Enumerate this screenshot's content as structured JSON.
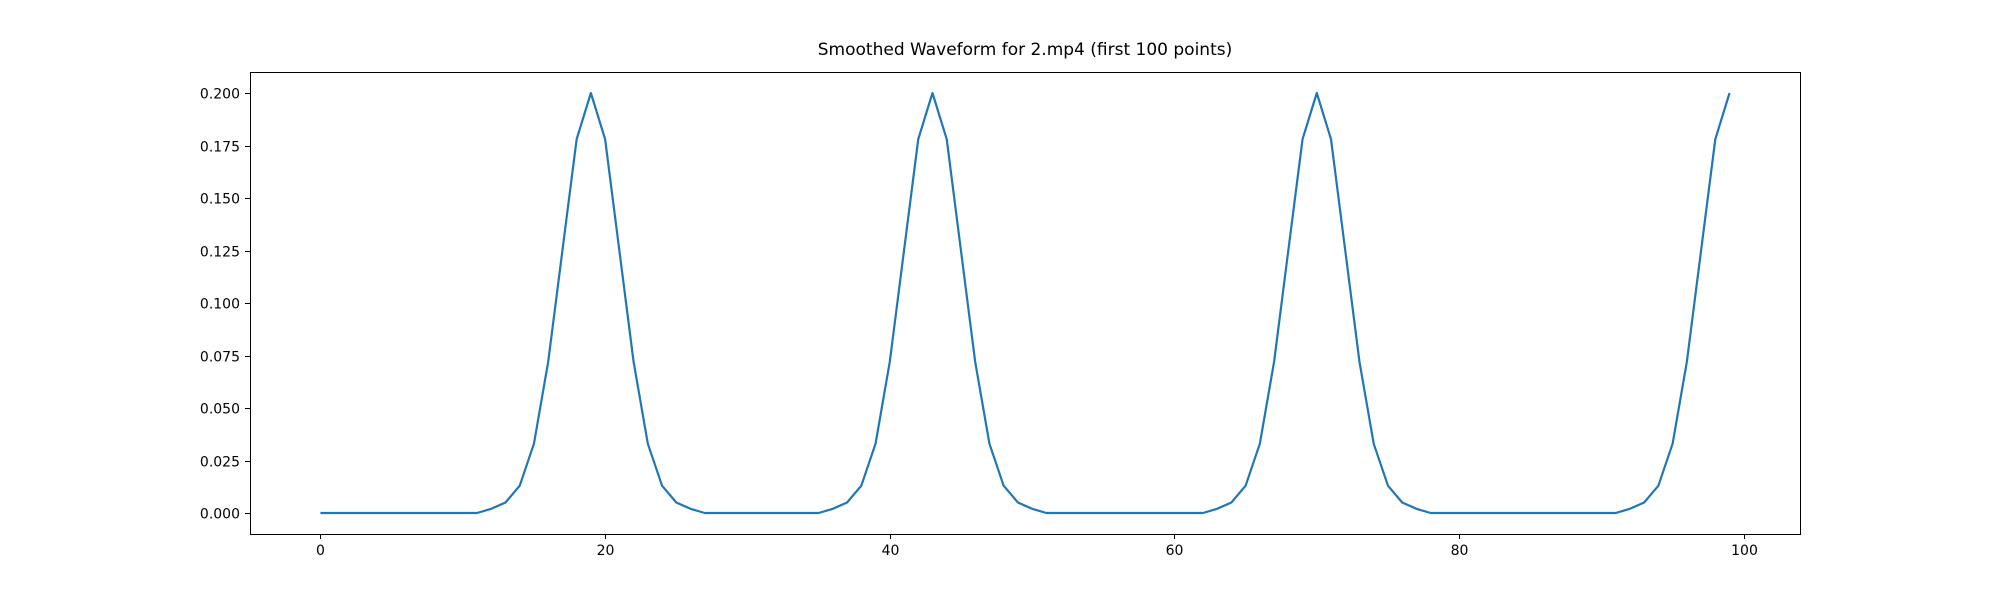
{
  "figure": {
    "background_color": "#ffffff",
    "axis_color": "#000000"
  },
  "chart_data": {
    "type": "line",
    "title": "Smoothed Waveform for 2.mp4 (first 100 points)",
    "xlabel": "",
    "ylabel": "",
    "legend": null,
    "grid": false,
    "line_color": "#1f77b4",
    "xlim": [
      -4.95,
      103.95
    ],
    "ylim": [
      -0.01,
      0.21
    ],
    "xticks": [
      0,
      20,
      40,
      60,
      80,
      100
    ],
    "xtick_labels": [
      "0",
      "20",
      "40",
      "60",
      "80",
      "100"
    ],
    "yticks": [
      0.0,
      0.025,
      0.05,
      0.075,
      0.1,
      0.125,
      0.15,
      0.175,
      0.2
    ],
    "ytick_labels": [
      "0.000",
      "0.025",
      "0.050",
      "0.075",
      "0.100",
      "0.125",
      "0.150",
      "0.175",
      "0.200"
    ],
    "x_start": 0,
    "x_step": 1,
    "values": [
      0,
      0,
      0,
      0,
      0,
      0,
      0,
      0,
      0,
      0,
      0,
      0,
      0.002,
      0.005,
      0.013,
      0.033,
      0.072,
      0.125,
      0.178,
      0.2,
      0.178,
      0.125,
      0.072,
      0.033,
      0.013,
      0.005,
      0.002,
      0,
      0,
      0,
      0,
      0,
      0,
      0,
      0,
      0,
      0.002,
      0.005,
      0.013,
      0.033,
      0.072,
      0.125,
      0.178,
      0.2,
      0.178,
      0.125,
      0.072,
      0.033,
      0.013,
      0.005,
      0.002,
      0,
      0,
      0,
      0,
      0,
      0,
      0,
      0,
      0,
      0,
      0,
      0,
      0.002,
      0.005,
      0.013,
      0.033,
      0.072,
      0.125,
      0.178,
      0.2,
      0.178,
      0.125,
      0.072,
      0.033,
      0.013,
      0.005,
      0.002,
      0,
      0,
      0,
      0,
      0,
      0,
      0,
      0,
      0,
      0,
      0,
      0,
      0,
      0,
      0.002,
      0.005,
      0.013,
      0.033,
      0.072,
      0.125,
      0.178,
      0.2
    ]
  }
}
